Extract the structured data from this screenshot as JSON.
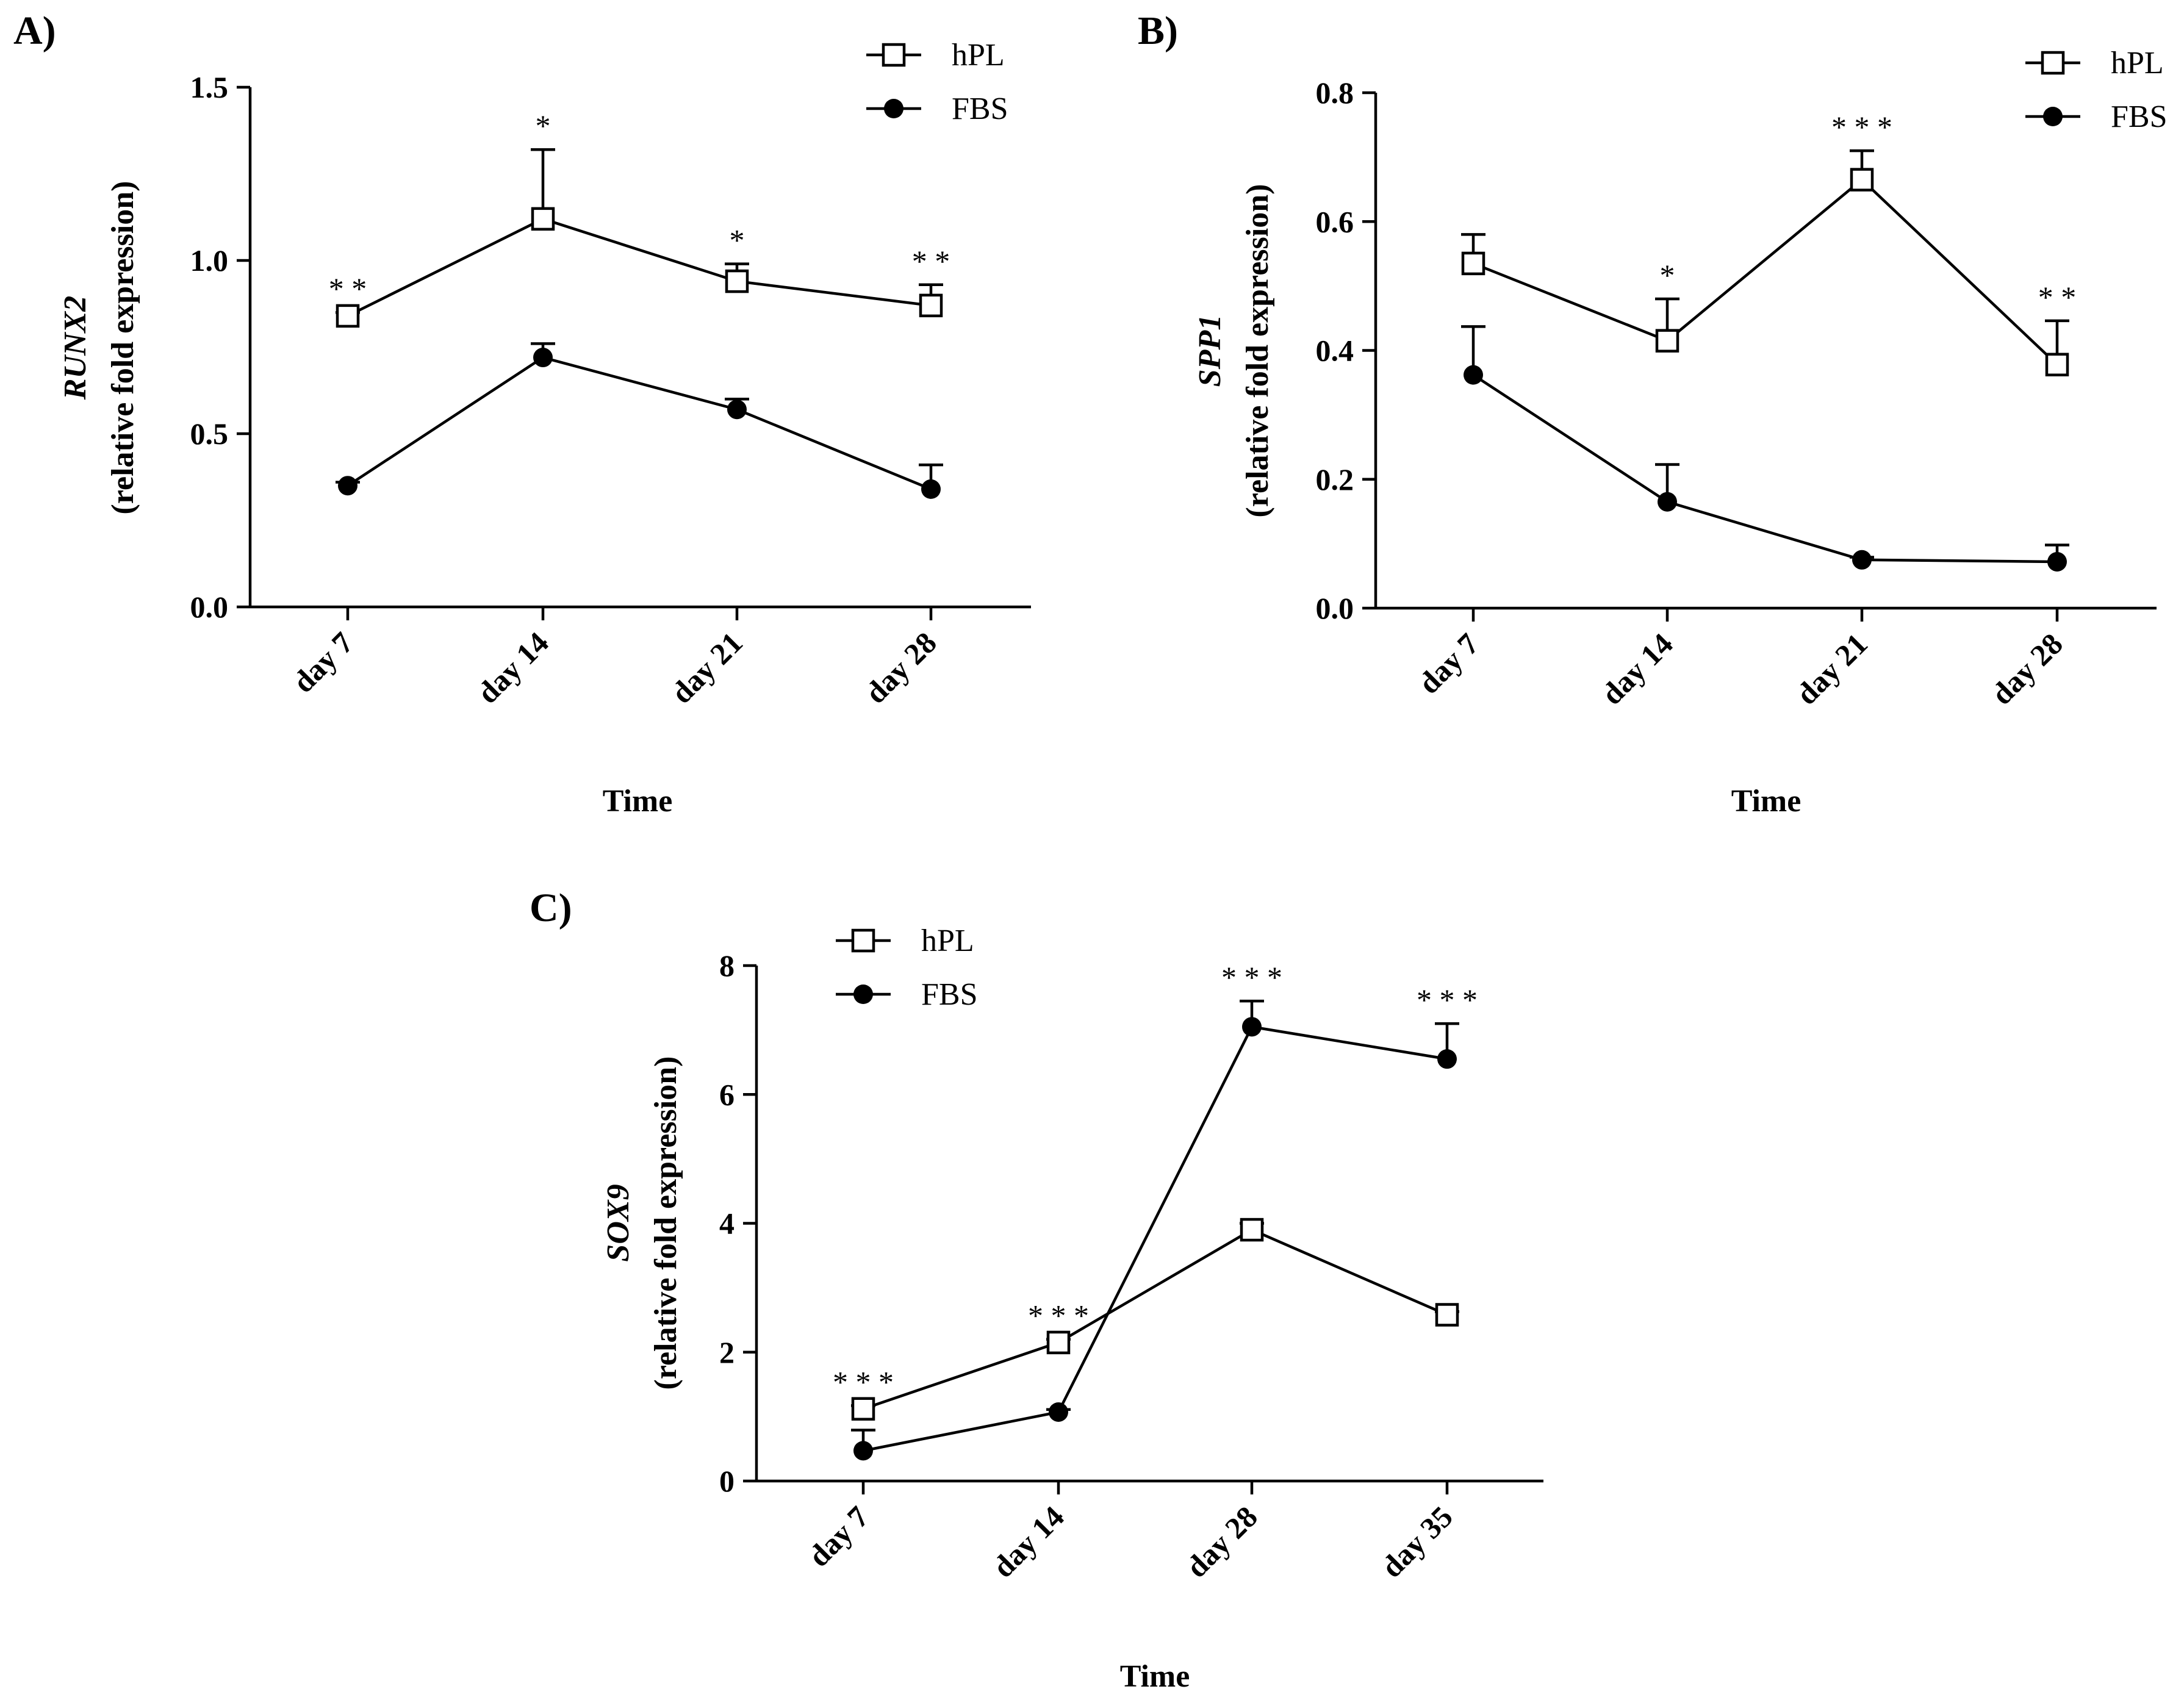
{
  "chart_data": [
    {
      "panel": "A)",
      "type": "line",
      "categories": [
        "day 7",
        "day 14",
        "day 21",
        "day 28"
      ],
      "xlabel": "Time",
      "ylabel_gene": "RUNX2",
      "ylabel": "(relative fold expression)",
      "ylim": [
        0,
        1.5
      ],
      "yticks": [
        "0.0",
        "0.5",
        "1.0",
        "1.5"
      ],
      "ytick_values": [
        0,
        0.5,
        1.0,
        1.5
      ],
      "legend_position": "top-right",
      "series": [
        {
          "name": "hPL",
          "marker": "open-square",
          "values": [
            0.84,
            1.12,
            0.94,
            0.87
          ],
          "err": [
            0.01,
            0.2,
            0.05,
            0.06
          ]
        },
        {
          "name": "FBS",
          "marker": "filled-circle",
          "values": [
            0.35,
            0.72,
            0.57,
            0.34
          ],
          "err": [
            0.01,
            0.04,
            0.03,
            0.07
          ]
        }
      ],
      "significance": [
        "* *",
        "*",
        "*",
        "* *"
      ]
    },
    {
      "panel": "B)",
      "type": "line",
      "categories": [
        "day 7",
        "day 14",
        "day 21",
        "day 28"
      ],
      "xlabel": "Time",
      "ylabel_gene": "SPP1",
      "ylabel": "(relative fold expression)",
      "ylim": [
        0,
        0.8
      ],
      "yticks": [
        "0.0",
        "0.2",
        "0.4",
        "0.6",
        "0.8"
      ],
      "ytick_values": [
        0,
        0.2,
        0.4,
        0.6,
        0.8
      ],
      "legend_position": "top-right",
      "series": [
        {
          "name": "hPL",
          "marker": "open-square",
          "values": [
            0.535,
            0.415,
            0.665,
            0.378
          ],
          "err": [
            0.045,
            0.065,
            0.045,
            0.068
          ]
        },
        {
          "name": "FBS",
          "marker": "filled-circle",
          "values": [
            0.362,
            0.165,
            0.075,
            0.072
          ],
          "err": [
            0.075,
            0.058,
            0.004,
            0.026
          ]
        }
      ],
      "significance": [
        "",
        "*",
        "* * *",
        "* *"
      ]
    },
    {
      "panel": "C)",
      "type": "line",
      "categories": [
        "day 7",
        "day 14",
        "day 28",
        "day 35"
      ],
      "xlabel": "Time",
      "ylabel_gene": "SOX9",
      "ylabel": "(relative fold expression)",
      "ylim": [
        0,
        8
      ],
      "yticks": [
        "0",
        "2",
        "4",
        "6",
        "8"
      ],
      "ytick_values": [
        0,
        2,
        4,
        6,
        8
      ],
      "legend_position": "top-left",
      "series": [
        {
          "name": "hPL",
          "marker": "open-square",
          "values": [
            1.12,
            2.15,
            3.9,
            2.58
          ],
          "err": [
            0.05,
            0.05,
            0.1,
            0.05
          ]
        },
        {
          "name": "FBS",
          "marker": "filled-circle",
          "values": [
            0.47,
            1.07,
            7.05,
            6.55
          ],
          "err": [
            0.32,
            0.04,
            0.4,
            0.55
          ]
        }
      ],
      "significance": [
        "* * *",
        "* * *",
        "* * *",
        "* * *"
      ]
    }
  ]
}
